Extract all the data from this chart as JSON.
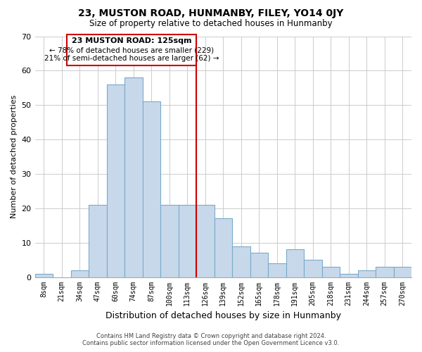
{
  "title": "23, MUSTON ROAD, HUNMANBY, FILEY, YO14 0JY",
  "subtitle": "Size of property relative to detached houses in Hunmanby",
  "xlabel": "Distribution of detached houses by size in Hunmanby",
  "ylabel": "Number of detached properties",
  "bar_labels": [
    "8sqm",
    "21sqm",
    "34sqm",
    "47sqm",
    "60sqm",
    "74sqm",
    "87sqm",
    "100sqm",
    "113sqm",
    "126sqm",
    "139sqm",
    "152sqm",
    "165sqm",
    "178sqm",
    "191sqm",
    "205sqm",
    "218sqm",
    "231sqm",
    "244sqm",
    "257sqm",
    "270sqm"
  ],
  "bar_values": [
    1,
    0,
    2,
    21,
    56,
    58,
    51,
    21,
    21,
    21,
    17,
    9,
    7,
    4,
    8,
    5,
    3,
    1,
    2,
    3,
    3
  ],
  "bar_color": "#c8d8eb",
  "bar_edgecolor": "#7aaac8",
  "highlight_line_color": "#cc0000",
  "ylim": [
    0,
    70
  ],
  "yticks": [
    0,
    10,
    20,
    30,
    40,
    50,
    60,
    70
  ],
  "annotation_title": "23 MUSTON ROAD: 125sqm",
  "annotation_line1": "← 78% of detached houses are smaller (229)",
  "annotation_line2": "21% of semi-detached houses are larger (62) →",
  "annotation_box_edgecolor": "#cc0000",
  "footer_line1": "Contains HM Land Registry data © Crown copyright and database right 2024.",
  "footer_line2": "Contains public sector information licensed under the Open Government Licence v3.0.",
  "grid_color": "#cccccc",
  "background_color": "#ffffff"
}
